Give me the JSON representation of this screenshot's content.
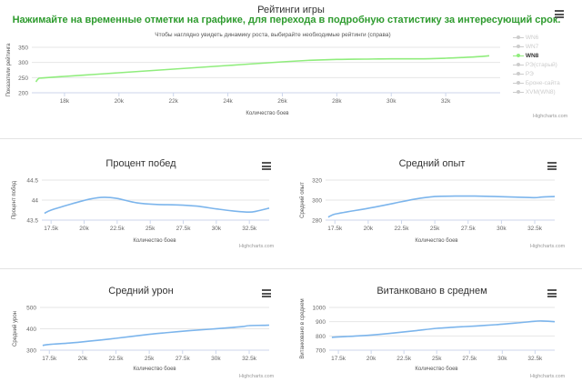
{
  "header": {
    "title": "Рейтинги игры",
    "instruction": "Нажимайте на временные отметки на графике, для перехода в подробную статистику за интересующий срок."
  },
  "colors": {
    "instruction": "#2e9b2e",
    "wn8_line": "#90ed7d",
    "small_line": "#7cb5ec",
    "inactive": "#cccccc"
  },
  "icons": {
    "menu": "hamburger-menu-icon"
  },
  "chart_data": [
    {
      "type": "line",
      "title": "Рейтинги игры",
      "subtitle": "Чтобы наглядно увидеть динамику роста, выбирайте необходимые рейтинги (справа)",
      "xlabel": "Количество боев",
      "ylabel": "Показатели рейтинга",
      "xlim": [
        16800,
        34000
      ],
      "ylim": [
        200,
        350
      ],
      "x_ticks": [
        18000,
        20000,
        22000,
        24000,
        26000,
        28000,
        30000,
        32000
      ],
      "x_tick_labels": [
        "18k",
        "20k",
        "22k",
        "24k",
        "26k",
        "28k",
        "30k",
        "32k"
      ],
      "y_ticks": [
        200,
        250,
        300,
        350
      ],
      "y_tick_labels": [
        "200",
        "250",
        "300",
        "350"
      ],
      "legend": [
        "WN6",
        "WN7",
        "WN8",
        "РЭ(старый)",
        "РЭ",
        "Броне-сайта",
        "XVM(WN8)"
      ],
      "legend_active": [
        "WN8"
      ],
      "legend_position": "right",
      "series": [
        {
          "name": "WN8",
          "x": [
            16950,
            17050,
            17200,
            18000,
            19000,
            20000,
            21000,
            22000,
            23000,
            24000,
            25000,
            26000,
            27000,
            28000,
            29000,
            30000,
            31000,
            32000,
            33000,
            33600
          ],
          "y": [
            236,
            247,
            249,
            254,
            260,
            266,
            272,
            278,
            284,
            290,
            296,
            302,
            307,
            310,
            311,
            312,
            312,
            314,
            318,
            322
          ]
        }
      ],
      "credits": "Highcharts.com"
    },
    {
      "type": "line",
      "title": "Процент побед",
      "xlabel": "Количество боев",
      "ylabel": "Процент побед",
      "xlim": [
        16800,
        34000
      ],
      "ylim": [
        43.5,
        44.5
      ],
      "x_ticks": [
        17500,
        20000,
        22500,
        25000,
        27500,
        30000,
        32500
      ],
      "x_tick_labels": [
        "17.5k",
        "20k",
        "22.5k",
        "25k",
        "27.5k",
        "30k",
        "32.5k"
      ],
      "y_ticks": [
        43.5,
        44,
        44.5
      ],
      "y_tick_labels": [
        "43.5",
        "44",
        "44.5"
      ],
      "series": [
        {
          "x": [
            17000,
            17500,
            19000,
            20500,
            21500,
            22500,
            24000,
            25500,
            27000,
            28500,
            30000,
            31500,
            32500,
            33000,
            34000
          ],
          "y": [
            43.67,
            43.75,
            43.9,
            44.03,
            44.07,
            44.04,
            43.93,
            43.89,
            43.88,
            43.85,
            43.78,
            43.72,
            43.7,
            43.72,
            43.8
          ]
        }
      ],
      "credits": "Highcharts.com"
    },
    {
      "type": "line",
      "title": "Средний опыт",
      "xlabel": "Количество боев",
      "ylabel": "Средний опыт",
      "xlim": [
        16800,
        34000
      ],
      "ylim": [
        280,
        320
      ],
      "x_ticks": [
        17500,
        20000,
        22500,
        25000,
        27500,
        30000,
        32500
      ],
      "x_tick_labels": [
        "17.5k",
        "20k",
        "22.5k",
        "25k",
        "27.5k",
        "30k",
        "32.5k"
      ],
      "y_ticks": [
        280,
        300,
        320
      ],
      "y_tick_labels": [
        "280",
        "300",
        "320"
      ],
      "series": [
        {
          "x": [
            17000,
            17500,
            19000,
            20500,
            22000,
            23500,
            25000,
            26500,
            28000,
            29500,
            31000,
            32500,
            33000,
            34000
          ],
          "y": [
            283,
            286,
            289.5,
            293,
            297,
            301,
            303.5,
            304,
            304,
            303.5,
            303,
            302.5,
            303,
            303.5
          ]
        }
      ],
      "credits": "Highcharts.com"
    },
    {
      "type": "line",
      "title": "Средний урон",
      "xlabel": "Количество боев",
      "ylabel": "Средний урон",
      "xlim": [
        16800,
        34000
      ],
      "ylim": [
        300,
        500
      ],
      "x_ticks": [
        17500,
        20000,
        22500,
        25000,
        27500,
        30000,
        32500
      ],
      "x_tick_labels": [
        "17.5k",
        "20k",
        "22.5k",
        "25k",
        "27.5k",
        "30k",
        "32.5k"
      ],
      "y_ticks": [
        300,
        400,
        500
      ],
      "y_tick_labels": [
        "300",
        "400",
        "500"
      ],
      "series": [
        {
          "x": [
            17000,
            17500,
            19000,
            20500,
            22000,
            23500,
            25000,
            26500,
            28000,
            29500,
            31000,
            32000,
            32500,
            33500,
            34000
          ],
          "y": [
            322,
            327,
            333,
            342,
            352,
            363,
            374,
            383,
            391,
            398,
            405,
            410,
            415,
            416,
            417
          ]
        }
      ],
      "credits": "Highcharts.com"
    },
    {
      "type": "line",
      "title": "Витанковано в среднем",
      "xlabel": "Количество боев",
      "ylabel": "Витанковано в среднем",
      "xlim": [
        16800,
        34000
      ],
      "ylim": [
        700,
        1000
      ],
      "x_ticks": [
        17500,
        20000,
        22500,
        25000,
        27500,
        30000,
        32500
      ],
      "x_tick_labels": [
        "17.5k",
        "20k",
        "22.5k",
        "25k",
        "27.5k",
        "30k",
        "32.5k"
      ],
      "y_ticks": [
        700,
        800,
        900,
        1000
      ],
      "y_tick_labels": [
        "700",
        "800",
        "900",
        "1000"
      ],
      "series": [
        {
          "x": [
            17000,
            17500,
            19000,
            20500,
            22000,
            23500,
            25000,
            26500,
            28000,
            29500,
            31000,
            32500,
            33000,
            34000
          ],
          "y": [
            790,
            793,
            800,
            810,
            823,
            838,
            853,
            862,
            870,
            879,
            890,
            903,
            905,
            900
          ]
        }
      ],
      "credits": "Highcharts.com"
    }
  ]
}
